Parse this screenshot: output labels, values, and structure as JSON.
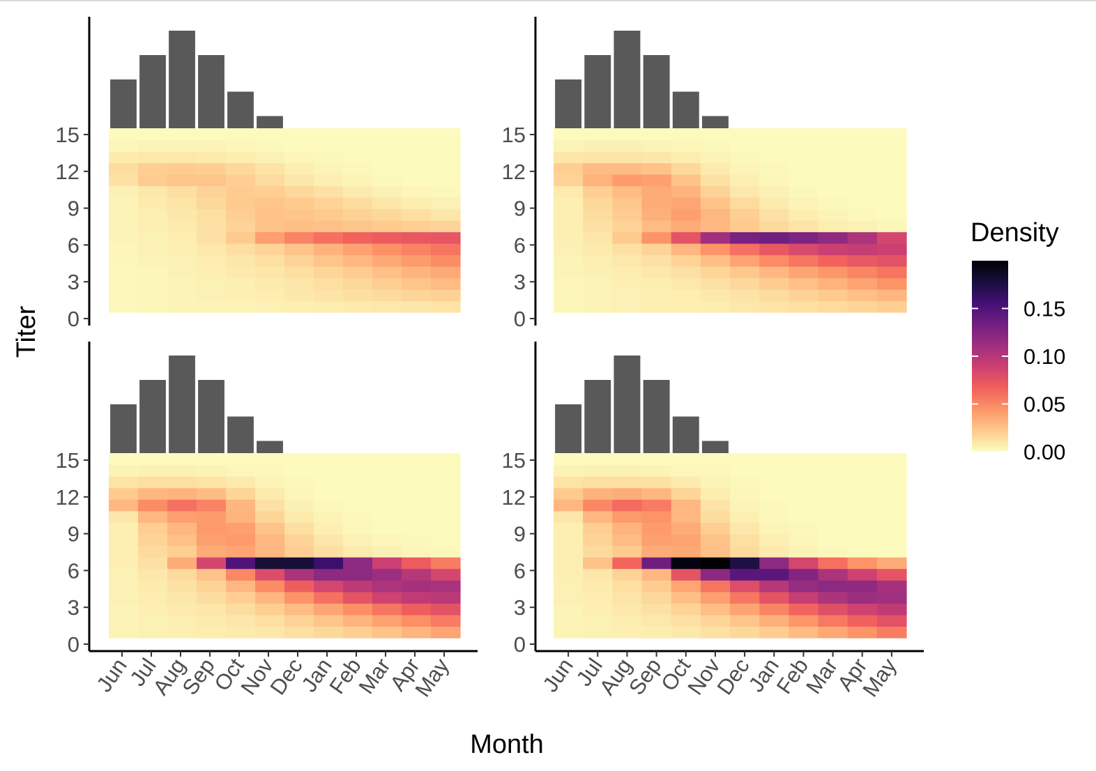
{
  "chart_data": {
    "type": "heatmap",
    "xlabel": "Month",
    "ylabel": "Titer",
    "months": [
      "Jun",
      "Jul",
      "Aug",
      "Sep",
      "Oct",
      "Nov",
      "Dec",
      "Jan",
      "Feb",
      "Mar",
      "Apr",
      "May"
    ],
    "y_ticks": [
      0,
      3,
      6,
      9,
      12,
      15
    ],
    "y_range": [
      0,
      15
    ],
    "legend": {
      "title": "Density",
      "range": [
        0,
        0.2
      ],
      "ticks": [
        0.0,
        0.05,
        0.1,
        0.15
      ],
      "tick_labels": [
        "0.00",
        "0.05",
        "0.10",
        "0.15"
      ],
      "colors": [
        "#fcfdbf",
        "#fec98d",
        "#fd9567",
        "#f1605d",
        "#cd4071",
        "#9e2f7f",
        "#721f81",
        "#440f76",
        "#180f3d",
        "#000004"
      ]
    },
    "bar_values": [
      2.0,
      3.0,
      4.0,
      3.0,
      1.5,
      0.5,
      0,
      0,
      0,
      0,
      0,
      0
    ],
    "panels": [
      {
        "panel": "top-left",
        "rows_titer_0_to_15": [
          [
            0.002,
            0.003,
            0.004,
            0.004,
            0.004,
            0.005,
            0.006,
            0.007,
            0.008,
            0.009,
            0.01,
            0.011
          ],
          [
            0.002,
            0.003,
            0.004,
            0.005,
            0.006,
            0.007,
            0.009,
            0.011,
            0.013,
            0.015,
            0.017,
            0.019
          ],
          [
            0.002,
            0.003,
            0.004,
            0.005,
            0.006,
            0.008,
            0.01,
            0.013,
            0.016,
            0.02,
            0.024,
            0.028
          ],
          [
            0.002,
            0.003,
            0.005,
            0.006,
            0.008,
            0.01,
            0.013,
            0.017,
            0.021,
            0.026,
            0.031,
            0.036
          ],
          [
            0.003,
            0.004,
            0.005,
            0.007,
            0.01,
            0.013,
            0.018,
            0.024,
            0.03,
            0.036,
            0.042,
            0.048
          ],
          [
            0.003,
            0.005,
            0.006,
            0.009,
            0.013,
            0.018,
            0.025,
            0.032,
            0.039,
            0.046,
            0.052,
            0.058
          ],
          [
            0.004,
            0.005,
            0.007,
            0.012,
            0.022,
            0.04,
            0.052,
            0.06,
            0.066,
            0.07,
            0.072,
            0.074
          ],
          [
            0.004,
            0.006,
            0.008,
            0.012,
            0.018,
            0.025,
            0.027,
            0.026,
            0.024,
            0.022,
            0.02,
            0.018
          ],
          [
            0.004,
            0.006,
            0.009,
            0.013,
            0.02,
            0.025,
            0.024,
            0.022,
            0.019,
            0.016,
            0.013,
            0.01
          ],
          [
            0.004,
            0.008,
            0.011,
            0.016,
            0.022,
            0.024,
            0.022,
            0.018,
            0.014,
            0.01,
            0.007,
            0.005
          ],
          [
            0.005,
            0.009,
            0.013,
            0.018,
            0.021,
            0.02,
            0.016,
            0.012,
            0.008,
            0.005,
            0.003,
            0.002
          ],
          [
            0.012,
            0.021,
            0.024,
            0.024,
            0.02,
            0.015,
            0.01,
            0.006,
            0.004,
            0.002,
            0.001,
            0.001
          ],
          [
            0.014,
            0.02,
            0.021,
            0.02,
            0.016,
            0.011,
            0.007,
            0.004,
            0.002,
            0.001,
            0.001,
            0.001
          ],
          [
            0.008,
            0.009,
            0.009,
            0.008,
            0.007,
            0.005,
            0.003,
            0.002,
            0.001,
            0.001,
            0.001,
            0.001
          ],
          [
            0.003,
            0.004,
            0.004,
            0.004,
            0.003,
            0.002,
            0.001,
            0.001,
            0.001,
            0.001,
            0.001,
            0.001
          ],
          [
            0.001,
            0.001,
            0.001,
            0.001,
            0.001,
            0.001,
            0.001,
            0.001,
            0.001,
            0.001,
            0.001,
            0.001
          ]
        ]
      },
      {
        "panel": "top-right",
        "rows_titer_0_to_15": [
          [
            0.003,
            0.004,
            0.005,
            0.006,
            0.006,
            0.007,
            0.009,
            0.011,
            0.013,
            0.015,
            0.017,
            0.02
          ],
          [
            0.003,
            0.004,
            0.005,
            0.006,
            0.007,
            0.009,
            0.011,
            0.014,
            0.018,
            0.022,
            0.026,
            0.03
          ],
          [
            0.003,
            0.004,
            0.006,
            0.007,
            0.009,
            0.012,
            0.016,
            0.021,
            0.026,
            0.032,
            0.038,
            0.045
          ],
          [
            0.004,
            0.005,
            0.007,
            0.009,
            0.012,
            0.017,
            0.023,
            0.03,
            0.037,
            0.044,
            0.051,
            0.058
          ],
          [
            0.004,
            0.006,
            0.009,
            0.012,
            0.018,
            0.027,
            0.038,
            0.049,
            0.058,
            0.066,
            0.072,
            0.076
          ],
          [
            0.005,
            0.008,
            0.012,
            0.018,
            0.03,
            0.045,
            0.06,
            0.072,
            0.082,
            0.09,
            0.093,
            0.09
          ],
          [
            0.006,
            0.01,
            0.022,
            0.045,
            0.075,
            0.11,
            0.13,
            0.135,
            0.128,
            0.118,
            0.105,
            0.085
          ],
          [
            0.006,
            0.012,
            0.018,
            0.028,
            0.035,
            0.03,
            0.022,
            0.016,
            0.011,
            0.007,
            0.005,
            0.003
          ],
          [
            0.006,
            0.014,
            0.021,
            0.033,
            0.04,
            0.03,
            0.02,
            0.012,
            0.007,
            0.004,
            0.002,
            0.001
          ],
          [
            0.006,
            0.016,
            0.023,
            0.035,
            0.037,
            0.025,
            0.015,
            0.008,
            0.004,
            0.002,
            0.001,
            0.001
          ],
          [
            0.008,
            0.02,
            0.028,
            0.035,
            0.032,
            0.018,
            0.009,
            0.005,
            0.002,
            0.001,
            0.001,
            0.001
          ],
          [
            0.018,
            0.032,
            0.042,
            0.04,
            0.025,
            0.012,
            0.006,
            0.003,
            0.001,
            0.001,
            0.001,
            0.001
          ],
          [
            0.02,
            0.028,
            0.028,
            0.025,
            0.016,
            0.008,
            0.004,
            0.002,
            0.001,
            0.001,
            0.001,
            0.001
          ],
          [
            0.01,
            0.011,
            0.011,
            0.01,
            0.007,
            0.004,
            0.002,
            0.001,
            0.001,
            0.001,
            0.001,
            0.001
          ],
          [
            0.004,
            0.005,
            0.005,
            0.004,
            0.003,
            0.002,
            0.001,
            0.001,
            0.001,
            0.001,
            0.001,
            0.001
          ],
          [
            0.001,
            0.001,
            0.001,
            0.001,
            0.001,
            0.001,
            0.001,
            0.001,
            0.001,
            0.001,
            0.001,
            0.001
          ]
        ]
      },
      {
        "panel": "bottom-left",
        "rows_titer_0_to_15": [
          [
            0.004,
            0.005,
            0.006,
            0.007,
            0.008,
            0.01,
            0.013,
            0.016,
            0.02,
            0.025,
            0.031,
            0.038
          ],
          [
            0.004,
            0.005,
            0.006,
            0.008,
            0.01,
            0.013,
            0.018,
            0.024,
            0.031,
            0.039,
            0.047,
            0.055
          ],
          [
            0.004,
            0.006,
            0.008,
            0.01,
            0.014,
            0.02,
            0.028,
            0.037,
            0.047,
            0.058,
            0.068,
            0.076
          ],
          [
            0.005,
            0.007,
            0.01,
            0.014,
            0.02,
            0.03,
            0.045,
            0.06,
            0.075,
            0.088,
            0.095,
            0.098
          ],
          [
            0.005,
            0.008,
            0.012,
            0.018,
            0.03,
            0.048,
            0.068,
            0.085,
            0.097,
            0.105,
            0.108,
            0.106
          ],
          [
            0.005,
            0.009,
            0.015,
            0.025,
            0.05,
            0.08,
            0.105,
            0.12,
            0.12,
            0.112,
            0.1,
            0.085
          ],
          [
            0.006,
            0.012,
            0.035,
            0.085,
            0.15,
            0.18,
            0.18,
            0.16,
            0.12,
            0.09,
            0.07,
            0.055
          ],
          [
            0.006,
            0.015,
            0.02,
            0.035,
            0.038,
            0.03,
            0.02,
            0.013,
            0.008,
            0.005,
            0.003,
            0.002
          ],
          [
            0.006,
            0.018,
            0.026,
            0.04,
            0.042,
            0.03,
            0.018,
            0.01,
            0.005,
            0.003,
            0.002,
            0.001
          ],
          [
            0.006,
            0.02,
            0.03,
            0.042,
            0.04,
            0.025,
            0.013,
            0.006,
            0.003,
            0.001,
            0.001,
            0.001
          ],
          [
            0.01,
            0.03,
            0.04,
            0.042,
            0.032,
            0.017,
            0.008,
            0.004,
            0.002,
            0.001,
            0.001,
            0.001
          ],
          [
            0.03,
            0.048,
            0.06,
            0.052,
            0.03,
            0.012,
            0.005,
            0.002,
            0.001,
            0.001,
            0.001,
            0.001
          ],
          [
            0.022,
            0.03,
            0.032,
            0.028,
            0.017,
            0.008,
            0.003,
            0.001,
            0.001,
            0.001,
            0.001,
            0.001
          ],
          [
            0.011,
            0.013,
            0.013,
            0.011,
            0.008,
            0.004,
            0.002,
            0.001,
            0.001,
            0.001,
            0.001,
            0.001
          ],
          [
            0.004,
            0.005,
            0.005,
            0.004,
            0.003,
            0.002,
            0.001,
            0.001,
            0.001,
            0.001,
            0.001,
            0.001
          ],
          [
            0.001,
            0.001,
            0.001,
            0.001,
            0.001,
            0.001,
            0.001,
            0.001,
            0.001,
            0.001,
            0.001,
            0.001
          ]
        ]
      },
      {
        "panel": "bottom-right",
        "rows_titer_0_to_15": [
          [
            0.004,
            0.005,
            0.006,
            0.007,
            0.009,
            0.012,
            0.016,
            0.021,
            0.028,
            0.036,
            0.045,
            0.055
          ],
          [
            0.004,
            0.005,
            0.007,
            0.009,
            0.012,
            0.017,
            0.024,
            0.033,
            0.044,
            0.056,
            0.067,
            0.076
          ],
          [
            0.004,
            0.006,
            0.009,
            0.012,
            0.018,
            0.027,
            0.038,
            0.051,
            0.065,
            0.078,
            0.088,
            0.095
          ],
          [
            0.005,
            0.007,
            0.011,
            0.016,
            0.026,
            0.04,
            0.057,
            0.075,
            0.092,
            0.105,
            0.112,
            0.11
          ],
          [
            0.005,
            0.008,
            0.013,
            0.021,
            0.037,
            0.058,
            0.08,
            0.1,
            0.115,
            0.12,
            0.118,
            0.108
          ],
          [
            0.006,
            0.01,
            0.018,
            0.03,
            0.075,
            0.12,
            0.145,
            0.145,
            0.125,
            0.105,
            0.088,
            0.075
          ],
          [
            0.006,
            0.025,
            0.065,
            0.135,
            0.195,
            0.2,
            0.175,
            0.12,
            0.085,
            0.06,
            0.045,
            0.035
          ],
          [
            0.006,
            0.015,
            0.022,
            0.035,
            0.036,
            0.026,
            0.015,
            0.008,
            0.004,
            0.002,
            0.001,
            0.001
          ],
          [
            0.006,
            0.018,
            0.028,
            0.04,
            0.038,
            0.025,
            0.013,
            0.006,
            0.003,
            0.001,
            0.001,
            0.001
          ],
          [
            0.006,
            0.02,
            0.031,
            0.042,
            0.035,
            0.02,
            0.009,
            0.004,
            0.002,
            0.001,
            0.001,
            0.001
          ],
          [
            0.01,
            0.03,
            0.042,
            0.045,
            0.03,
            0.014,
            0.006,
            0.002,
            0.001,
            0.001,
            0.001,
            0.001
          ],
          [
            0.03,
            0.05,
            0.062,
            0.055,
            0.03,
            0.011,
            0.004,
            0.002,
            0.001,
            0.001,
            0.001,
            0.001
          ],
          [
            0.022,
            0.032,
            0.034,
            0.03,
            0.017,
            0.007,
            0.003,
            0.001,
            0.001,
            0.001,
            0.001,
            0.001
          ],
          [
            0.011,
            0.013,
            0.013,
            0.012,
            0.008,
            0.004,
            0.002,
            0.001,
            0.001,
            0.001,
            0.001,
            0.001
          ],
          [
            0.004,
            0.005,
            0.005,
            0.004,
            0.003,
            0.002,
            0.001,
            0.001,
            0.001,
            0.001,
            0.001,
            0.001
          ],
          [
            0.001,
            0.001,
            0.001,
            0.001,
            0.001,
            0.001,
            0.001,
            0.001,
            0.001,
            0.001,
            0.001,
            0.001
          ]
        ]
      }
    ]
  }
}
